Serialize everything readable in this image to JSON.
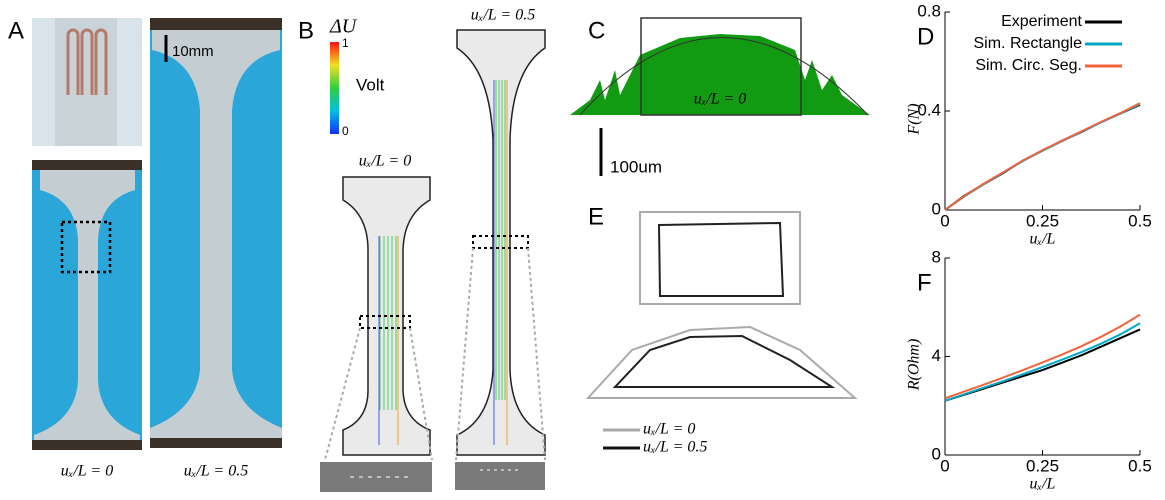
{
  "panels": {
    "A": {
      "label": "A",
      "scale": "10mm",
      "captions": [
        "uₓ/L = 0",
        "uₓ/L = 0.5"
      ]
    },
    "B": {
      "label": "B",
      "colorbar_title": "ΔU",
      "colorbar_unit": "Volt",
      "colorbar_max": "1",
      "colorbar_min": "0",
      "captions": [
        "uₓ/L = 0",
        "uₓ/L = 0.5"
      ]
    },
    "C": {
      "label": "C",
      "caption": "uₓ/L = 0",
      "scale": "100um"
    },
    "E": {
      "label": "E",
      "legend": [
        "uₓ/L = 0",
        "uₓ/L = 0.5"
      ]
    }
  },
  "chart_data": [
    {
      "type": "line",
      "panel_label": "D",
      "y_label": "F(N)",
      "x_label": "uₓ/L",
      "x": [
        0,
        0.05,
        0.1,
        0.15,
        0.2,
        0.25,
        0.3,
        0.35,
        0.4,
        0.45,
        0.5
      ],
      "xlim": [
        0,
        0.5
      ],
      "xticks": [
        0,
        0.25,
        0.5
      ],
      "ylim": [
        0,
        0.8
      ],
      "yticks": [
        0,
        0.4,
        0.8
      ],
      "legend": "upper right",
      "series": [
        {
          "name": "Experiment",
          "color": "#000000",
          "values": [
            0,
            0.058,
            0.105,
            0.15,
            0.2,
            0.24,
            0.28,
            0.315,
            0.355,
            0.39,
            0.425
          ]
        },
        {
          "name": "Sim. Rectangle",
          "color": "#00a8c8",
          "values": [
            0,
            0.055,
            0.105,
            0.152,
            0.198,
            0.24,
            0.278,
            0.316,
            0.354,
            0.39,
            0.428
          ]
        },
        {
          "name": "Sim. Circ. Seg.",
          "color": "#f0643c",
          "values": [
            0,
            0.057,
            0.107,
            0.153,
            0.2,
            0.242,
            0.28,
            0.318,
            0.356,
            0.392,
            0.432
          ]
        }
      ]
    },
    {
      "type": "line",
      "panel_label": "F",
      "y_label": "R(Ohm)",
      "x_label": "uₓ/L",
      "x": [
        0,
        0.05,
        0.1,
        0.15,
        0.2,
        0.25,
        0.3,
        0.35,
        0.4,
        0.45,
        0.5
      ],
      "xlim": [
        0,
        0.5
      ],
      "xticks": [
        0,
        0.25,
        0.5
      ],
      "ylim": [
        0,
        8
      ],
      "yticks": [
        0,
        4,
        8
      ],
      "series": [
        {
          "color": "#000000",
          "values": [
            2.2,
            2.45,
            2.7,
            2.95,
            3.2,
            3.45,
            3.75,
            4.05,
            4.4,
            4.75,
            5.1
          ]
        },
        {
          "color": "#00a8c8",
          "values": [
            2.2,
            2.47,
            2.74,
            3.0,
            3.28,
            3.57,
            3.87,
            4.18,
            4.52,
            4.9,
            5.35
          ]
        },
        {
          "color": "#f0643c",
          "values": [
            2.3,
            2.58,
            2.86,
            3.15,
            3.45,
            3.76,
            4.08,
            4.42,
            4.8,
            5.22,
            5.7
          ]
        }
      ]
    }
  ]
}
